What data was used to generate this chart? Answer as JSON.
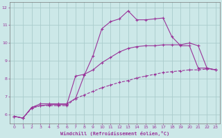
{
  "xlabel": "Windchill (Refroidissement éolien,°C)",
  "xlim": [
    -0.5,
    23.5
  ],
  "ylim": [
    5.5,
    12.3
  ],
  "xticks": [
    0,
    1,
    2,
    3,
    4,
    5,
    6,
    7,
    8,
    9,
    10,
    11,
    12,
    13,
    14,
    15,
    16,
    17,
    18,
    19,
    20,
    21,
    22,
    23
  ],
  "yticks": [
    6,
    7,
    8,
    9,
    10,
    11,
    12
  ],
  "bg_color": "#cce8e8",
  "grid_color": "#aacccc",
  "line_color": "#993399",
  "lines": [
    {
      "x": [
        0,
        1,
        2,
        3,
        4,
        5,
        6,
        7,
        8,
        9,
        10,
        11,
        12,
        13,
        14,
        15,
        16,
        17,
        18,
        19,
        20,
        21,
        22,
        23
      ],
      "y": [
        5.9,
        5.8,
        6.4,
        6.6,
        6.6,
        6.6,
        6.6,
        6.9,
        8.2,
        9.3,
        10.8,
        11.2,
        11.35,
        11.8,
        11.3,
        11.3,
        11.35,
        11.4,
        10.35,
        9.85,
        9.85,
        8.6,
        8.6,
        8.5
      ],
      "marker": "+"
    },
    {
      "x": [
        0,
        1,
        2,
        3,
        4,
        5,
        6,
        7,
        8,
        9,
        10,
        11,
        12,
        13,
        14,
        15,
        16,
        17,
        18,
        19,
        20,
        21,
        22,
        23
      ],
      "y": [
        5.9,
        5.8,
        6.4,
        6.5,
        6.55,
        6.55,
        6.55,
        8.15,
        8.25,
        8.5,
        8.9,
        9.2,
        9.5,
        9.7,
        9.8,
        9.85,
        9.85,
        9.9,
        9.9,
        9.9,
        10.0,
        9.85,
        8.6,
        8.5
      ],
      "marker": "+"
    },
    {
      "x": [
        0,
        1,
        2,
        3,
        4,
        5,
        6,
        7,
        8,
        9,
        10,
        11,
        12,
        13,
        14,
        15,
        16,
        17,
        18,
        19,
        20,
        21,
        22,
        23
      ],
      "y": [
        5.9,
        5.8,
        6.35,
        6.5,
        6.5,
        6.5,
        6.5,
        6.9,
        7.1,
        7.3,
        7.5,
        7.65,
        7.8,
        7.9,
        8.05,
        8.15,
        8.25,
        8.35,
        8.4,
        8.45,
        8.5,
        8.5,
        8.55,
        8.5
      ],
      "marker": "+"
    }
  ]
}
